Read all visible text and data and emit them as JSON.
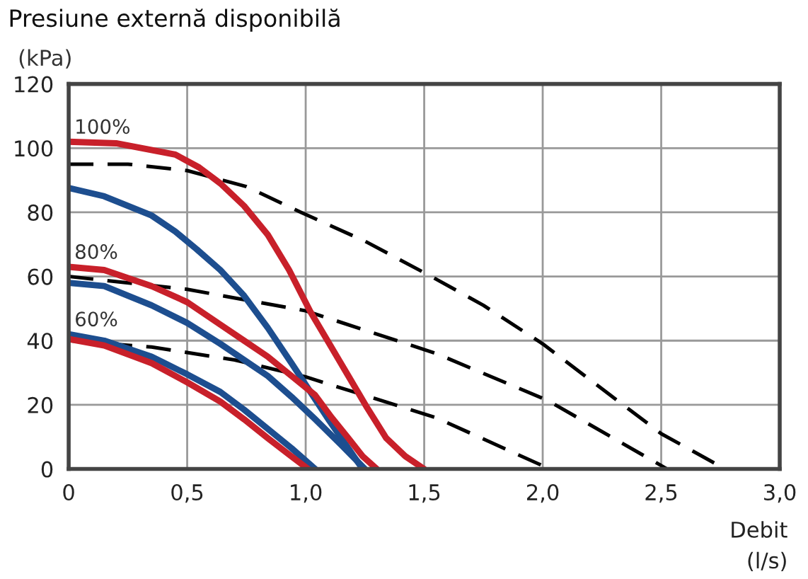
{
  "chart_data": {
    "type": "line",
    "title": "Presiune externă disponibilă",
    "ylabel": "(kPa)",
    "xlabel": "Debit\n(l/s)",
    "xlim": [
      0,
      3
    ],
    "ylim": [
      0,
      120
    ],
    "xticks": [
      0,
      {
        "value": 0.5,
        "label": "0,5"
      },
      {
        "value": 1,
        "label": "1,0"
      },
      {
        "value": 1.5,
        "label": "1,5"
      },
      {
        "value": 2,
        "label": "2,0"
      },
      {
        "value": 2.5,
        "label": "2,5"
      },
      {
        "value": 3,
        "label": "3,0"
      }
    ],
    "yticks": [
      0,
      20,
      40,
      60,
      80,
      100,
      120
    ],
    "grid": true,
    "legend": false,
    "annotations": [
      "100%",
      "80%",
      "60%"
    ],
    "series": [
      {
        "color": "#000000",
        "line_style": "dashed",
        "x": [
          0,
          0.25,
          0.5,
          0.75,
          0.98,
          1.25,
          1.53,
          1.75,
          2.0,
          2.25,
          2.5,
          2.77
        ],
        "values": [
          95,
          95,
          93,
          88,
          80,
          71,
          60,
          51,
          39,
          25,
          11,
          0
        ]
      },
      {
        "color": "#000000",
        "line_style": "dashed",
        "x": [
          0,
          0.5,
          1.0,
          1.55,
          2.02,
          2.525
        ],
        "values": [
          60,
          56,
          49.3,
          36,
          21.4,
          0
        ]
      },
      {
        "color": "#000000",
        "line_style": "dashed",
        "x": [
          0,
          0.35,
          0.7,
          1.0,
          1.55,
          2.03
        ],
        "values": [
          40,
          38,
          34,
          28.7,
          16,
          0
        ]
      },
      {
        "color": "#1d4e8f",
        "line_style": "solid",
        "x": [
          0,
          0.15,
          0.35,
          0.45,
          0.54,
          0.64,
          0.74,
          0.84,
          0.94,
          1.02,
          1.1,
          1.17,
          1.24
        ],
        "values": [
          87.6,
          85,
          79,
          74,
          68.5,
          62,
          54,
          44,
          33,
          24,
          15,
          7.5,
          0
        ]
      },
      {
        "color": "#1d4e8f",
        "line_style": "solid",
        "x": [
          0,
          0.15,
          0.35,
          0.5,
          0.64,
          0.74,
          0.84,
          0.94,
          1.04,
          1.15,
          1.25
        ],
        "values": [
          58,
          57,
          51,
          45.5,
          39,
          34,
          29,
          22.5,
          15.5,
          7.5,
          0
        ]
      },
      {
        "color": "#1d4e8f",
        "line_style": "solid",
        "x": [
          0,
          0.15,
          0.35,
          0.5,
          0.64,
          0.74,
          0.84,
          0.94,
          1.04
        ],
        "values": [
          42,
          40,
          35,
          29.5,
          24,
          18.5,
          12.5,
          6.5,
          0
        ]
      },
      {
        "color": "#c8202a",
        "line_style": "solid",
        "x": [
          0,
          0.2,
          0.45,
          0.55,
          0.64,
          0.74,
          0.84,
          0.93,
          1.02,
          1.1,
          1.18,
          1.26,
          1.34,
          1.42,
          1.5
        ],
        "values": [
          102,
          101.5,
          98,
          94,
          89,
          82,
          73,
          62,
          49,
          39,
          29,
          19,
          9.6,
          4,
          0
        ]
      },
      {
        "color": "#c8202a",
        "line_style": "solid",
        "x": [
          0,
          0.15,
          0.35,
          0.5,
          0.64,
          0.74,
          0.84,
          0.94,
          1.04,
          1.11,
          1.18,
          1.24,
          1.3
        ],
        "values": [
          63,
          62,
          57,
          52,
          45,
          40,
          35,
          29,
          23,
          16,
          9.6,
          4,
          0
        ]
      },
      {
        "color": "#c8202a",
        "line_style": "solid",
        "x": [
          0,
          0.15,
          0.35,
          0.5,
          0.64,
          0.74,
          0.84,
          0.93,
          1.01
        ],
        "values": [
          40.5,
          38.5,
          33,
          27,
          21,
          15.5,
          9.6,
          4.5,
          0
        ]
      }
    ]
  }
}
